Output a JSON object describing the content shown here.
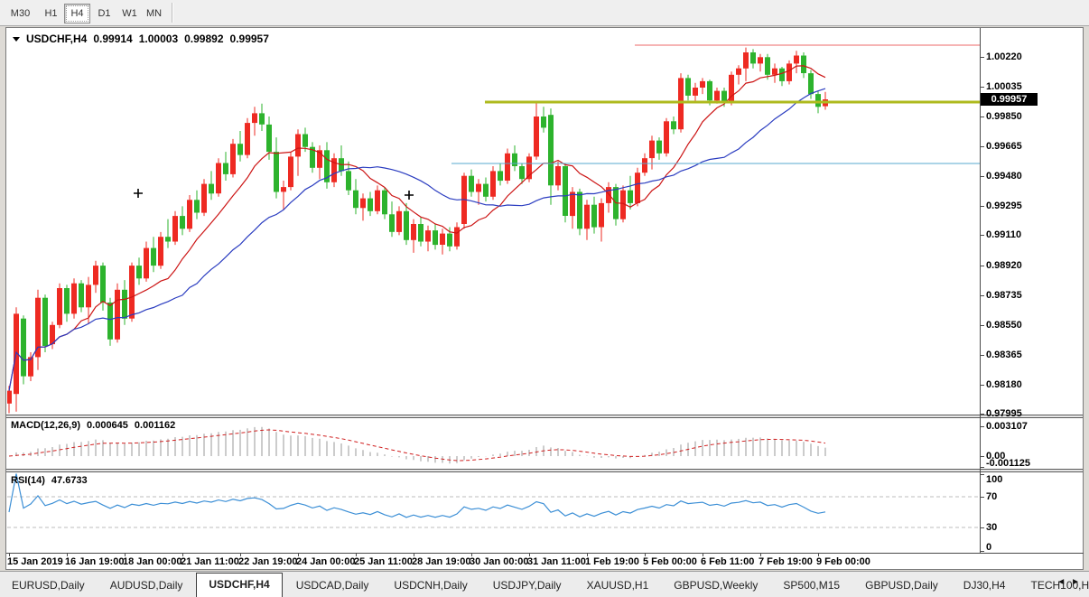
{
  "toolbar": {
    "timeframes": [
      {
        "label": "M30",
        "active": false
      },
      {
        "label": "H1",
        "active": false
      },
      {
        "label": "H4",
        "active": true
      },
      {
        "label": "D1",
        "active": false
      },
      {
        "label": "W1",
        "active": false
      },
      {
        "label": "MN",
        "active": false
      }
    ]
  },
  "chart_data": {
    "type": "candlestick",
    "symbol_label": "USDCHF,H4",
    "ohlc_display": {
      "open": "0.99914",
      "high": "1.00003",
      "low": "0.99892",
      "close": "0.99957"
    },
    "current_price": "0.99957",
    "ylim": [
      "0.97995",
      "1.00220"
    ],
    "price_ticks": [
      "1.00220",
      "1.00035",
      "0.99850",
      "0.99665",
      "0.99480",
      "0.99295",
      "0.99110",
      "0.98920",
      "0.98735",
      "0.98550",
      "0.98365",
      "0.98180",
      "0.97995"
    ],
    "time_labels": [
      "15 Jan 2019",
      "16 Jan 19:00",
      "18 Jan 00:00",
      "21 Jan 11:00",
      "22 Jan 19:00",
      "24 Jan 00:00",
      "25 Jan 11:00",
      "28 Jan 19:00",
      "30 Jan 00:00",
      "31 Jan 11:00",
      "1 Feb 19:00",
      "5 Feb 00:00",
      "6 Feb 11:00",
      "7 Feb 19:00",
      "9 Feb 00:00"
    ],
    "candles_pips": [
      [
        9806,
        9817,
        9800,
        9814
      ],
      [
        9812,
        9866,
        9801,
        9862
      ],
      [
        9859,
        9861,
        9818,
        9823
      ],
      [
        9823,
        9838,
        9820,
        9835
      ],
      [
        9835,
        9877,
        9827,
        9872
      ],
      [
        9872,
        9874,
        9838,
        9842
      ],
      [
        9843,
        9857,
        9840,
        9855
      ],
      [
        9855,
        9881,
        9853,
        9878
      ],
      [
        9878,
        9880,
        9857,
        9862
      ],
      [
        9862,
        9884,
        9859,
        9881
      ],
      [
        9881,
        9883,
        9863,
        9866
      ],
      [
        9866,
        9885,
        9856,
        9880
      ],
      [
        9880,
        9895,
        9875,
        9892
      ],
      [
        9892,
        9894,
        9864,
        9869
      ],
      [
        9869,
        9872,
        9842,
        9846
      ],
      [
        9846,
        9881,
        9844,
        9877
      ],
      [
        9877,
        9883,
        9855,
        9859
      ],
      [
        9859,
        9894,
        9857,
        9892
      ],
      [
        9892,
        9897,
        9880,
        9884
      ],
      [
        9884,
        9907,
        9882,
        9903
      ],
      [
        9903,
        9910,
        9888,
        9892
      ],
      [
        9892,
        9913,
        9890,
        9910
      ],
      [
        9910,
        9921,
        9903,
        9907
      ],
      [
        9907,
        9926,
        9905,
        9923
      ],
      [
        9923,
        9929,
        9911,
        9915
      ],
      [
        9915,
        9936,
        9913,
        9933
      ],
      [
        9933,
        9939,
        9921,
        9925
      ],
      [
        9925,
        9946,
        9923,
        9943
      ],
      [
        9943,
        9951,
        9933,
        9937
      ],
      [
        9937,
        9959,
        9935,
        9956
      ],
      [
        9956,
        9963,
        9945,
        9949
      ],
      [
        9949,
        9971,
        9947,
        9968
      ],
      [
        9968,
        9976,
        9957,
        9961
      ],
      [
        9961,
        9984,
        9959,
        9981
      ],
      [
        9981,
        9991,
        9973,
        9987
      ],
      [
        9987,
        9993,
        9976,
        9980
      ],
      [
        9980,
        9985,
        9958,
        9963
      ],
      [
        9963,
        9972,
        9934,
        9938
      ],
      [
        9938,
        9945,
        9927,
        9941
      ],
      [
        9941,
        9963,
        9939,
        9960
      ],
      [
        9960,
        9977,
        9948,
        9974
      ],
      [
        9974,
        9978,
        9963,
        9966
      ],
      [
        9966,
        9969,
        9950,
        9953
      ],
      [
        9953,
        9967,
        9946,
        9964
      ],
      [
        9964,
        9969,
        9940,
        9944
      ],
      [
        9944,
        9962,
        9941,
        9959
      ],
      [
        9959,
        9967,
        9948,
        9951
      ],
      [
        9951,
        9957,
        9936,
        9939
      ],
      [
        9939,
        9946,
        9924,
        9928
      ],
      [
        9928,
        9937,
        9920,
        9934
      ],
      [
        9934,
        9938,
        9923,
        9926
      ],
      [
        9926,
        9942,
        9924,
        9939
      ],
      [
        9939,
        9941,
        9921,
        9924
      ],
      [
        9924,
        9932,
        9910,
        9913
      ],
      [
        9913,
        9929,
        9911,
        9926
      ],
      [
        9926,
        9931,
        9905,
        9908
      ],
      [
        9908,
        9921,
        9900,
        9918
      ],
      [
        9918,
        9922,
        9904,
        9907
      ],
      [
        9907,
        9917,
        9901,
        9914
      ],
      [
        9914,
        9918,
        9902,
        9905
      ],
      [
        9905,
        9915,
        9899,
        9912
      ],
      [
        9912,
        9916,
        9901,
        9904
      ],
      [
        9904,
        9919,
        9902,
        9916
      ],
      [
        9918,
        9950,
        9915,
        9948
      ],
      [
        9948,
        9952,
        9935,
        9938
      ],
      [
        9938,
        9946,
        9930,
        9943
      ],
      [
        9943,
        9947,
        9932,
        9935
      ],
      [
        9935,
        9954,
        9933,
        9951
      ],
      [
        9951,
        9956,
        9942,
        9945
      ],
      [
        9945,
        9965,
        9943,
        9962
      ],
      [
        9962,
        9967,
        9951,
        9954
      ],
      [
        9954,
        9956,
        9943,
        9946
      ],
      [
        9946,
        9962,
        9944,
        9960
      ],
      [
        9960,
        9994,
        9958,
        9985
      ],
      [
        9985,
        9991,
        9975,
        9978
      ],
      [
        9986,
        9990,
        9930,
        9942
      ],
      [
        9942,
        9957,
        9939,
        9954
      ],
      [
        9954,
        9956,
        9919,
        9923
      ],
      [
        9923,
        9941,
        9915,
        9938
      ],
      [
        9938,
        9940,
        9911,
        9915
      ],
      [
        9915,
        9933,
        9908,
        9930
      ],
      [
        9930,
        9935,
        9912,
        9916
      ],
      [
        9916,
        9934,
        9907,
        9931
      ],
      [
        9931,
        9944,
        9925,
        9941
      ],
      [
        9941,
        9943,
        9917,
        9921
      ],
      [
        9921,
        9942,
        9919,
        9939
      ],
      [
        9939,
        9948,
        9927,
        9931
      ],
      [
        9931,
        9953,
        9929,
        9950
      ],
      [
        9950,
        9962,
        9948,
        9959
      ],
      [
        9959,
        9973,
        9952,
        9970
      ],
      [
        9970,
        9972,
        9958,
        9962
      ],
      [
        9962,
        9984,
        9960,
        9982
      ],
      [
        9982,
        9985,
        9974,
        9977
      ],
      [
        9977,
        10012,
        9975,
        10009
      ],
      [
        10009,
        10011,
        9995,
        9998
      ],
      [
        9998,
        10006,
        9994,
        10003
      ],
      [
        10003,
        10009,
        9999,
        10007
      ],
      [
        10007,
        10008,
        9992,
        9995
      ],
      [
        9995,
        10003,
        9993,
        10001
      ],
      [
        10001,
        10003,
        9991,
        9994
      ],
      [
        9994,
        10013,
        9992,
        10011
      ],
      [
        10011,
        10017,
        10005,
        10015
      ],
      [
        10015,
        10028,
        10007,
        10025
      ],
      [
        10025,
        10027,
        10015,
        10018
      ],
      [
        10018,
        10024,
        10013,
        10022
      ],
      [
        10022,
        10024,
        10008,
        10011
      ],
      [
        10011,
        10018,
        10006,
        10015
      ],
      [
        10015,
        10016,
        10004,
        10007
      ],
      [
        10007,
        10020,
        10005,
        10018
      ],
      [
        10018,
        10026,
        10012,
        10023
      ],
      [
        10023,
        10025,
        10009,
        10012
      ],
      [
        10012,
        10014,
        9996,
        9999
      ],
      [
        9999,
        10001,
        9987,
        9991
      ],
      [
        9991.4,
        10000.3,
        9989.2,
        9995.7
      ]
    ],
    "moving_averages": [
      {
        "name": "ma-fast",
        "period": 10,
        "color": "#cc1414"
      },
      {
        "name": "ma-slow",
        "period": 25,
        "color": "#2a3cc0"
      }
    ],
    "hlines": [
      {
        "name": "resistance-red-line",
        "pips": 10029.5,
        "x_start": 703,
        "color": "#ee6a6a",
        "width": 1
      },
      {
        "name": "support-olive-line",
        "pips": 9994.0,
        "x_start": 537,
        "color": "#aeba1e",
        "width": 3
      },
      {
        "name": "support-teal-line",
        "pips": 9955.7,
        "x_start": 500,
        "color": "#57a8cf",
        "width": 1
      }
    ],
    "markers": [
      {
        "x": 153,
        "y": 214
      },
      {
        "x": 453,
        "y": 216
      }
    ],
    "macd": {
      "label": "MACD(12,26,9)",
      "value_main": "0.000645",
      "value_signal": "0.001162",
      "scale_labels": [
        "0.003107",
        "0.00",
        "-0.001125"
      ]
    },
    "rsi": {
      "label": "RSI(14)",
      "value": "47.6733",
      "scale_labels": [
        "100",
        "70",
        "30",
        "0"
      ],
      "levels": [
        70,
        30
      ]
    },
    "colors": {
      "bull": "#ee2a22",
      "bear": "#2db32d",
      "macd_hist": "#9a9a9a",
      "macd_signal": "#d02020",
      "rsi": "#3c8fd6",
      "rsi_levels": "#bdbdbd"
    }
  },
  "tabs": {
    "items": [
      {
        "label": "EURUSD,Daily",
        "active": false
      },
      {
        "label": "AUDUSD,Daily",
        "active": false
      },
      {
        "label": "USDCHF,H4",
        "active": true
      },
      {
        "label": "USDCAD,Daily",
        "active": false
      },
      {
        "label": "USDCNH,Daily",
        "active": false
      },
      {
        "label": "USDJPY,Daily",
        "active": false
      },
      {
        "label": "XAUUSD,H1",
        "active": false
      },
      {
        "label": "GBPUSD,Weekly",
        "active": false
      },
      {
        "label": "SP500,M15",
        "active": false
      },
      {
        "label": "GBPUSD,Daily",
        "active": false
      },
      {
        "label": "DJ30,H4",
        "active": false
      },
      {
        "label": "TECH100,H1",
        "active": false
      }
    ],
    "nav_left": "◄",
    "nav_right": "►"
  }
}
